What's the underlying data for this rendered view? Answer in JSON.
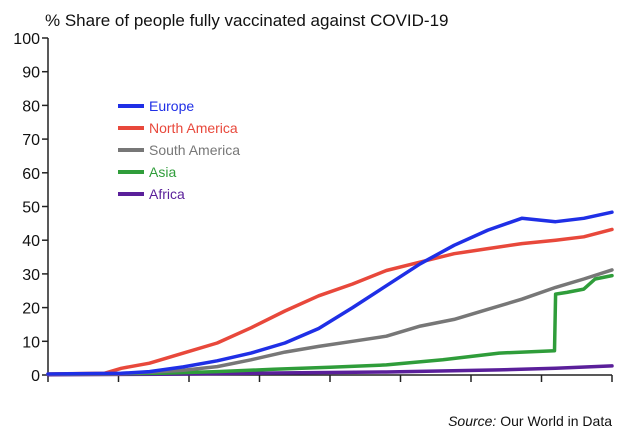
{
  "chart_data": {
    "type": "line",
    "title": "% Share of people fully vaccinated against COVID-19",
    "xlabel": "",
    "ylabel": "",
    "ylim": [
      0,
      100
    ],
    "yticks": [
      0,
      10,
      20,
      30,
      40,
      50,
      60,
      70,
      80,
      90,
      100
    ],
    "xlim": [
      0,
      100
    ],
    "legend_position": "upper-left-inside",
    "series": [
      {
        "name": "Europe",
        "color": "#1f2fe6",
        "x": [
          0,
          13,
          18,
          24,
          30,
          36,
          42,
          48,
          54,
          60,
          66,
          72,
          78,
          84,
          90,
          95,
          100
        ],
        "y": [
          0.3,
          0.5,
          1.0,
          2.4,
          4.2,
          6.5,
          9.5,
          13.8,
          20.0,
          26.5,
          33.0,
          38.5,
          43.0,
          46.5,
          45.5,
          46.5,
          48.3
        ]
      },
      {
        "name": "North America",
        "color": "#e8483b",
        "x": [
          0,
          10,
          13,
          18,
          24,
          30,
          36,
          42,
          48,
          54,
          60,
          66,
          72,
          78,
          84,
          90,
          95,
          100
        ],
        "y": [
          0.3,
          0.5,
          2.0,
          3.5,
          6.5,
          9.5,
          14.0,
          19.0,
          23.5,
          27.0,
          31.0,
          33.5,
          36.0,
          37.5,
          39.0,
          40.0,
          41.0,
          43.2
        ]
      },
      {
        "name": "South America",
        "color": "#777777",
        "x": [
          0,
          12,
          18,
          24,
          30,
          36,
          42,
          48,
          54,
          60,
          66,
          72,
          78,
          84,
          90,
          95,
          100
        ],
        "y": [
          0.2,
          0.3,
          0.8,
          1.4,
          2.5,
          4.5,
          6.8,
          8.5,
          10.0,
          11.5,
          14.5,
          16.5,
          19.5,
          22.5,
          26.0,
          28.5,
          31.2
        ]
      },
      {
        "name": "Asia",
        "color": "#2f9d3a",
        "x": [
          0,
          20,
          30,
          40,
          50,
          60,
          70,
          80,
          89.8,
          90,
          92,
          95,
          97,
          100
        ],
        "y": [
          0.2,
          0.5,
          1.0,
          1.7,
          2.3,
          3.0,
          4.5,
          6.5,
          7.2,
          24.0,
          24.5,
          25.5,
          28.5,
          29.5
        ]
      },
      {
        "name": "Africa",
        "color": "#5a1f9a",
        "x": [
          0,
          20,
          40,
          60,
          80,
          90,
          100
        ],
        "y": [
          0.1,
          0.2,
          0.6,
          0.9,
          1.5,
          2.0,
          2.7
        ]
      }
    ],
    "source_prefix": "Source:",
    "source_text": " Our World in Data"
  }
}
